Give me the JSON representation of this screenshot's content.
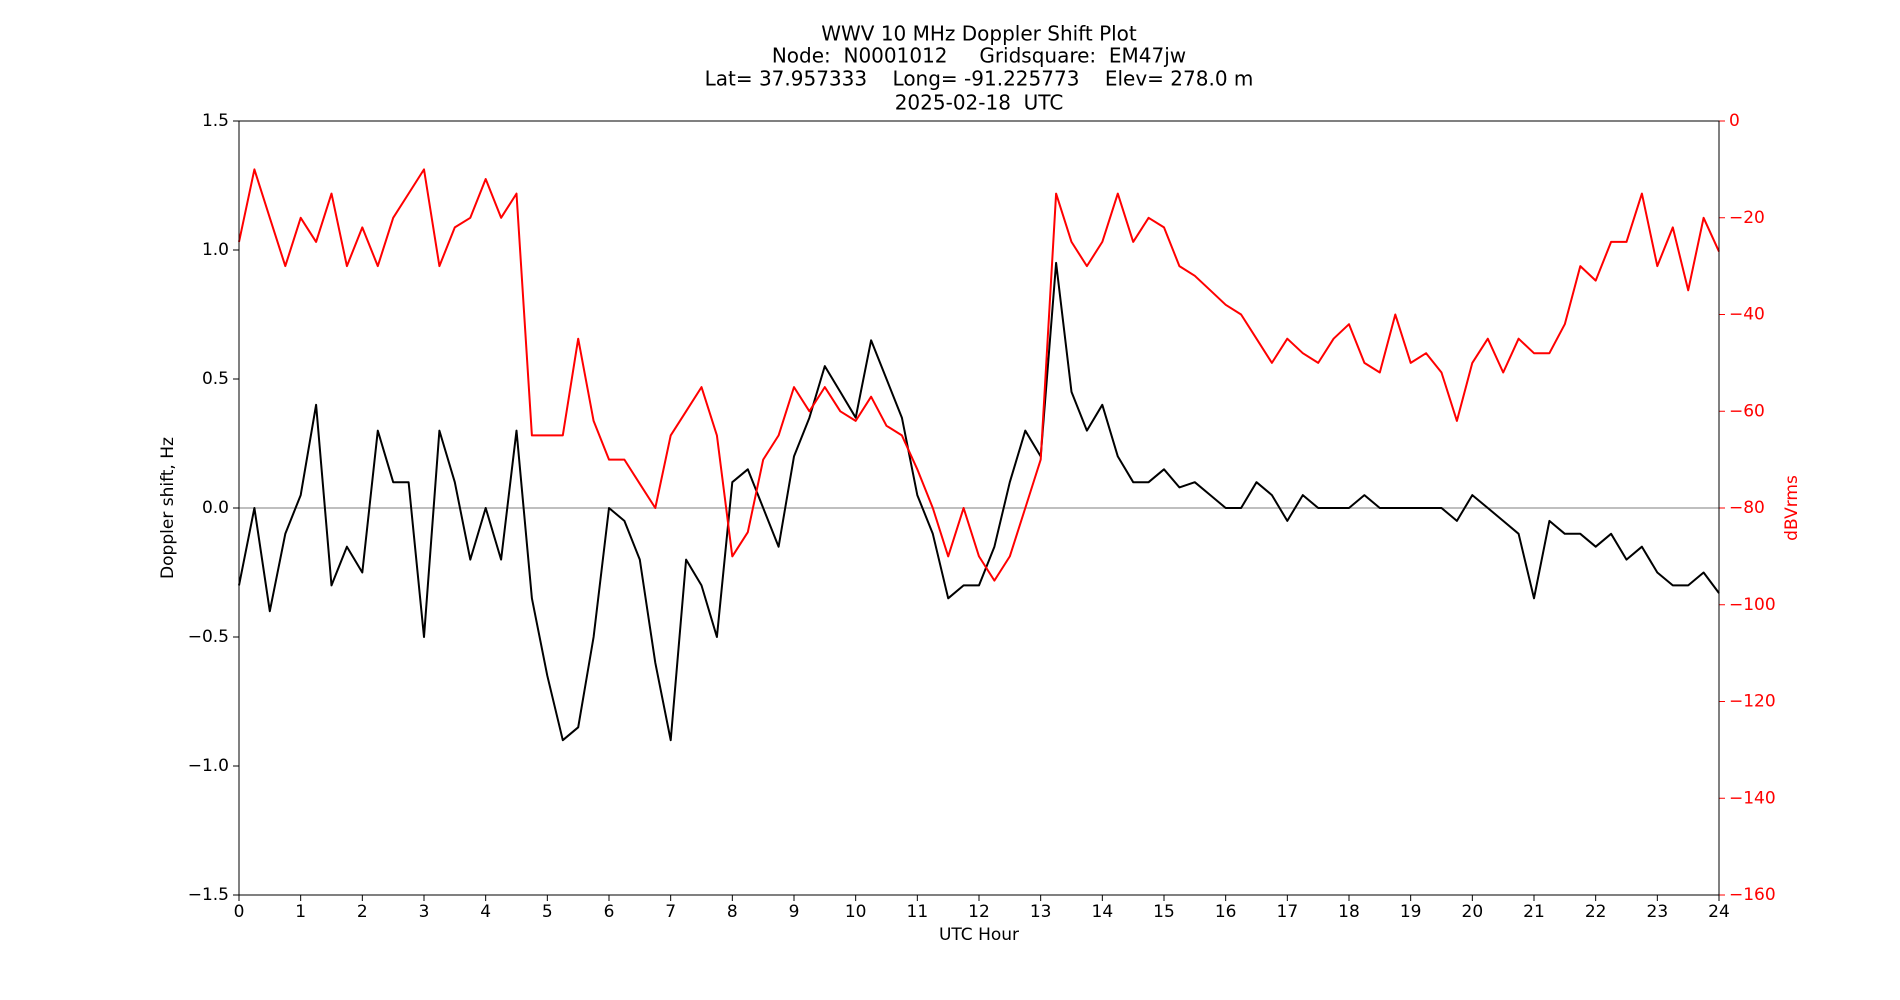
{
  "chart_data": {
    "type": "line",
    "title": [
      "WWV 10 MHz Doppler Shift Plot",
      "Node:  N0001012     Gridsquare:  EM47jw",
      "Lat= 37.957333    Long= -91.225773    Elev= 278.0 m",
      "2025-02-18  UTC"
    ],
    "xlabel": "UTC Hour",
    "ylabel": "Doppler shift, Hz",
    "y2label": "dBVrms",
    "y2color": "#ff0000",
    "xlim": [
      0,
      24
    ],
    "xticks": [
      0,
      1,
      2,
      3,
      4,
      5,
      6,
      7,
      8,
      9,
      10,
      11,
      12,
      13,
      14,
      15,
      16,
      17,
      18,
      19,
      20,
      21,
      22,
      23,
      24
    ],
    "ylim": [
      -1.5,
      1.5
    ],
    "yticks": [
      {
        "value": -1.5,
        "label": "−1.5"
      },
      {
        "value": -1.0,
        "label": "−1.0"
      },
      {
        "value": -0.5,
        "label": "−0.5"
      },
      {
        "value": 0,
        "label": "0.0"
      },
      0.5,
      {
        "value": 1.0,
        "label": "1.0"
      },
      1.5
    ],
    "y2lim": [
      -160,
      0
    ],
    "y2ticks": [
      {
        "value": -160,
        "label": "−160"
      },
      {
        "value": -140,
        "label": "−140"
      },
      {
        "value": -120,
        "label": "−120"
      },
      {
        "value": -100,
        "label": "−100"
      },
      {
        "value": -80,
        "label": "−80"
      },
      {
        "value": -60,
        "label": "−60"
      },
      {
        "value": -40,
        "label": "−40"
      },
      {
        "value": -20,
        "label": "−20"
      },
      0
    ],
    "hline": 0,
    "hline_color": "#999999",
    "x": [
      0,
      0.25,
      0.5,
      0.75,
      1,
      1.25,
      1.5,
      1.75,
      2,
      2.25,
      2.5,
      2.75,
      3,
      3.25,
      3.5,
      3.75,
      4,
      4.25,
      4.5,
      4.75,
      5,
      5.25,
      5.5,
      5.75,
      6,
      6.25,
      6.5,
      6.75,
      7,
      7.25,
      7.5,
      7.75,
      8,
      8.25,
      8.5,
      8.75,
      9,
      9.25,
      9.5,
      9.75,
      10,
      10.25,
      10.5,
      10.75,
      11,
      11.25,
      11.5,
      11.75,
      12,
      12.25,
      12.5,
      12.75,
      13,
      13.25,
      13.5,
      13.75,
      14,
      14.25,
      14.5,
      14.75,
      15,
      15.25,
      15.5,
      15.75,
      16,
      16.25,
      16.5,
      16.75,
      17,
      17.25,
      17.5,
      17.75,
      18,
      18.25,
      18.5,
      18.75,
      19,
      19.25,
      19.5,
      19.75,
      20,
      20.25,
      20.5,
      20.75,
      21,
      21.25,
      21.5,
      21.75,
      22,
      22.25,
      22.5,
      22.75,
      23,
      23.25,
      23.5,
      23.75,
      24
    ],
    "series": [
      {
        "color": "#000000",
        "axis": "y",
        "values": [
          -0.3,
          0.0,
          -0.4,
          -0.1,
          0.05,
          0.4,
          -0.3,
          -0.15,
          -0.25,
          0.3,
          0.1,
          0.1,
          -0.5,
          0.3,
          0.1,
          -0.2,
          0.0,
          -0.2,
          0.3,
          -0.35,
          -0.65,
          -0.9,
          -0.85,
          -0.5,
          0.0,
          -0.05,
          -0.2,
          -0.6,
          -0.9,
          -0.2,
          -0.3,
          -0.5,
          0.1,
          0.15,
          0.0,
          -0.15,
          0.2,
          0.35,
          0.55,
          0.45,
          0.35,
          0.65,
          0.5,
          0.35,
          0.05,
          -0.1,
          -0.35,
          -0.3,
          -0.3,
          -0.15,
          0.1,
          0.3,
          0.2,
          0.95,
          0.45,
          0.3,
          0.4,
          0.2,
          0.1,
          0.1,
          0.15,
          0.08,
          0.1,
          0.05,
          0.0,
          0.0,
          0.1,
          0.05,
          -0.05,
          0.05,
          0.0,
          0.0,
          0.0,
          0.05,
          0.0,
          0.0,
          0.0,
          0.0,
          0.0,
          -0.05,
          0.05,
          0.0,
          -0.05,
          -0.1,
          -0.35,
          -0.05,
          -0.1,
          -0.1,
          -0.15,
          -0.1,
          -0.2,
          -0.15,
          -0.25,
          -0.3,
          -0.3,
          -0.25,
          -0.33
        ]
      },
      {
        "color": "#ff0000",
        "axis": "y2",
        "values": [
          -25,
          -10,
          -20,
          -30,
          -20,
          -25,
          -15,
          -30,
          -22,
          -30,
          -20,
          -15,
          -10,
          -30,
          -22,
          -20,
          -12,
          -20,
          -15,
          -65,
          -65,
          -65,
          -45,
          -62,
          -70,
          -70,
          -75,
          -80,
          -65,
          -60,
          -55,
          -65,
          -90,
          -85,
          -70,
          -65,
          -55,
          -60,
          -55,
          -60,
          -62,
          -57,
          -63,
          -65,
          -72,
          -80,
          -90,
          -80,
          -90,
          -95,
          -90,
          -80,
          -70,
          -15,
          -25,
          -30,
          -25,
          -15,
          -25,
          -20,
          -22,
          -30,
          -32,
          -35,
          -38,
          -40,
          -45,
          -50,
          -45,
          -48,
          -50,
          -45,
          -42,
          -50,
          -52,
          -40,
          -50,
          -48,
          -52,
          -62,
          -50,
          -45,
          -52,
          -45,
          -48,
          -48,
          -42,
          -30,
          -33,
          -25,
          -25,
          -15,
          -30,
          -22,
          -35,
          -20,
          -27
        ]
      }
    ]
  }
}
